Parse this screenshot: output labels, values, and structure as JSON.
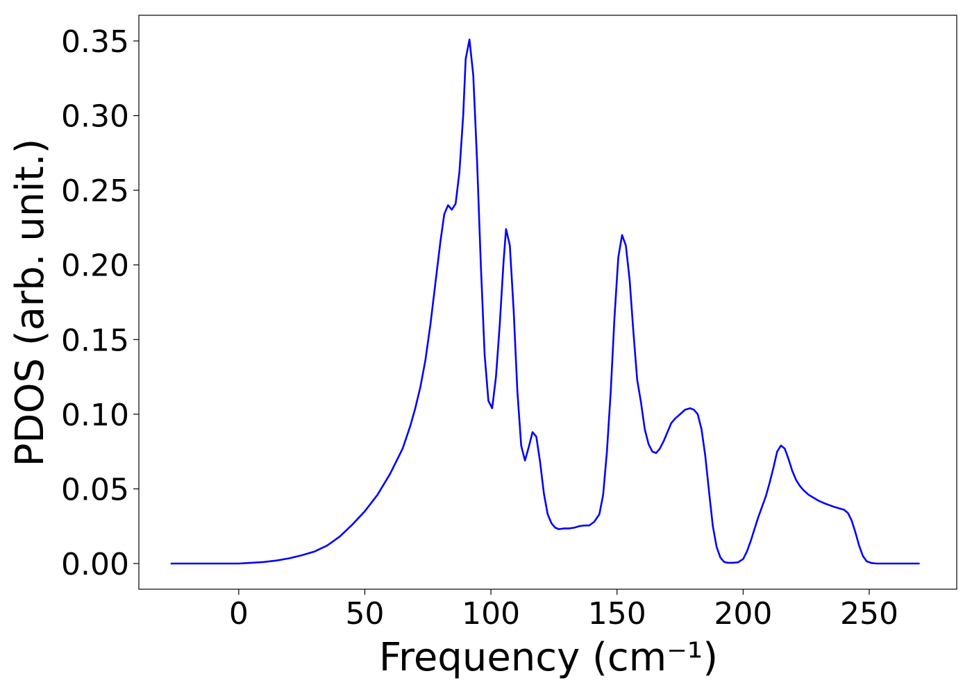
{
  "chart_data": {
    "type": "line",
    "xlabel": "Frequency (cm⁻¹)",
    "ylabel": "PDOS (arb. unit.)",
    "xlim": [
      -39.6,
      284.7
    ],
    "ylim": [
      -0.0172,
      0.3672
    ],
    "xticks": [
      0,
      50,
      100,
      150,
      200,
      250
    ],
    "yticks": [
      {
        "value": 0,
        "label": "0.00"
      },
      {
        "value": 0.05,
        "label": "0.05"
      },
      {
        "value": 0.1,
        "label": "0.10"
      },
      {
        "value": 0.15,
        "label": "0.15"
      },
      {
        "value": 0.2,
        "label": "0.20"
      },
      {
        "value": 0.25,
        "label": "0.25"
      },
      {
        "value": 0.3,
        "label": "0.30"
      },
      {
        "value": 0.35,
        "label": "0.35"
      }
    ],
    "x": [
      -27,
      0,
      5,
      10,
      15,
      20,
      25,
      30,
      35,
      40,
      45,
      50,
      55,
      60,
      65,
      68,
      70,
      72,
      74,
      76,
      78,
      80,
      81.5,
      83,
      84.5,
      86,
      87.5,
      89,
      90,
      91.5,
      93,
      94.5,
      96,
      97.5,
      99,
      100.5,
      102,
      103.5,
      105,
      106,
      107.5,
      109,
      110.5,
      112,
      113.5,
      115,
      116.5,
      118,
      119.5,
      121,
      122.5,
      124,
      125.5,
      127,
      129,
      131,
      133,
      135,
      137,
      139,
      141,
      143,
      144.5,
      146,
      147.5,
      149,
      150.5,
      152,
      153.5,
      155,
      156.5,
      158,
      159.5,
      161,
      162.5,
      164,
      165.5,
      167,
      168.5,
      170,
      171.5,
      173,
      175,
      177,
      179,
      180.5,
      182,
      183.5,
      185,
      186.5,
      188,
      189.5,
      191,
      192.5,
      194,
      196,
      198,
      200,
      201.5,
      203,
      204.5,
      206,
      207.5,
      209,
      210.5,
      212,
      213.5,
      215,
      216.5,
      218,
      219.5,
      221,
      222.5,
      224,
      226,
      228,
      230,
      232,
      234,
      236,
      238,
      240,
      241.5,
      243,
      244.5,
      246,
      247.5,
      249,
      251,
      253,
      260,
      270
    ],
    "series": [
      {
        "name": "PDOS",
        "color": "#0000ff",
        "values": [
          0,
          0,
          0.0005,
          0.001,
          0.002,
          0.0035,
          0.0055,
          0.008,
          0.012,
          0.018,
          0.026,
          0.035,
          0.046,
          0.06,
          0.077,
          0.092,
          0.104,
          0.118,
          0.136,
          0.16,
          0.188,
          0.216,
          0.234,
          0.24,
          0.237,
          0.241,
          0.262,
          0.3,
          0.338,
          0.351,
          0.327,
          0.27,
          0.2,
          0.14,
          0.109,
          0.104,
          0.125,
          0.16,
          0.202,
          0.224,
          0.213,
          0.17,
          0.115,
          0.079,
          0.069,
          0.078,
          0.088,
          0.085,
          0.068,
          0.047,
          0.033,
          0.027,
          0.024,
          0.023,
          0.0235,
          0.0235,
          0.024,
          0.025,
          0.0255,
          0.0255,
          0.028,
          0.033,
          0.046,
          0.075,
          0.115,
          0.165,
          0.205,
          0.22,
          0.213,
          0.19,
          0.155,
          0.123,
          0.108,
          0.09,
          0.08,
          0.075,
          0.074,
          0.077,
          0.082,
          0.088,
          0.094,
          0.097,
          0.1,
          0.103,
          0.104,
          0.103,
          0.1,
          0.09,
          0.072,
          0.048,
          0.025,
          0.011,
          0.004,
          0.001,
          0.0005,
          0.0005,
          0.0008,
          0.003,
          0.008,
          0.015,
          0.023,
          0.031,
          0.038,
          0.045,
          0.054,
          0.064,
          0.075,
          0.079,
          0.077,
          0.07,
          0.062,
          0.056,
          0.052,
          0.049,
          0.046,
          0.044,
          0.042,
          0.0405,
          0.0392,
          0.038,
          0.037,
          0.036,
          0.034,
          0.029,
          0.021,
          0.012,
          0.005,
          0.0015,
          0.0003,
          0,
          0,
          0
        ]
      }
    ]
  }
}
